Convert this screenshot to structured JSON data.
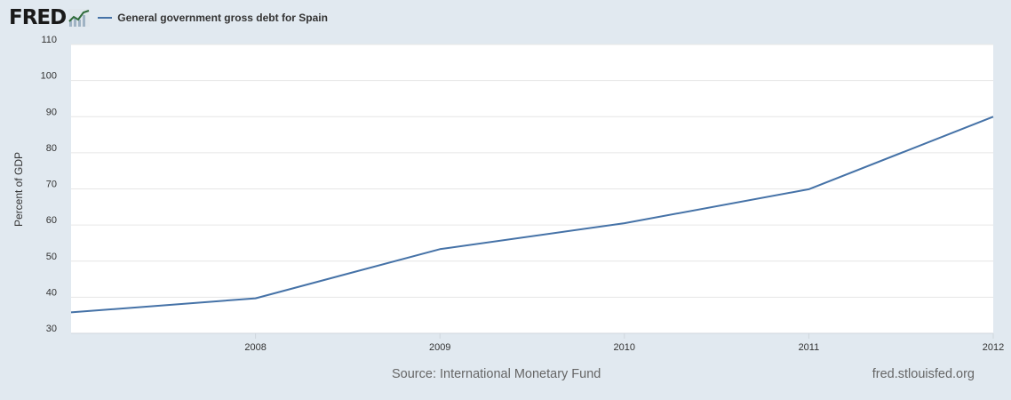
{
  "brand": {
    "logo_text": "FRED",
    "logo_icon": "chart-line-icon"
  },
  "legend": {
    "label": "General government gross debt for Spain",
    "color": "#4572a7"
  },
  "footer": {
    "source": "Source: International Monetary Fund",
    "url": "fred.stlouisfed.org"
  },
  "chart_data": {
    "type": "line",
    "title": "General government gross debt for Spain",
    "xlabel": "",
    "ylabel": "Percent of GDP",
    "ylim": [
      30,
      110
    ],
    "xlim": [
      2007,
      2012
    ],
    "yticks": [
      30,
      40,
      50,
      60,
      70,
      80,
      90,
      100,
      110
    ],
    "xticks": [
      2008,
      2009,
      2010,
      2011,
      2012
    ],
    "grid": true,
    "series": [
      {
        "name": "General government gross debt for Spain",
        "color": "#4572a7",
        "x": [
          2007,
          2008,
          2009,
          2010,
          2011,
          2012
        ],
        "values": [
          35.8,
          39.7,
          53.3,
          60.5,
          69.9,
          90.0
        ]
      }
    ]
  }
}
